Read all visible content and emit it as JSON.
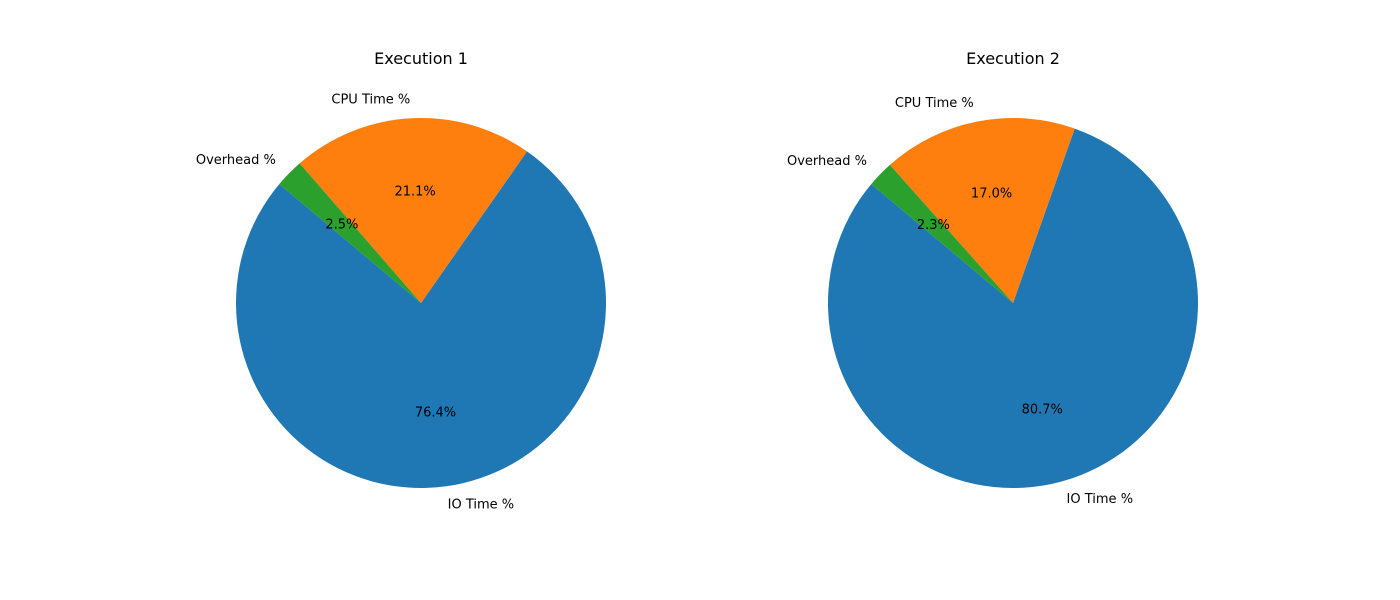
{
  "chart_data": [
    {
      "type": "pie",
      "title": "Execution 1",
      "start_angle_deg": 140,
      "direction": "counterclockwise",
      "slices": [
        {
          "label": "IO Time %",
          "value": 76.4,
          "display": "76.4%",
          "color": "#1f77b4"
        },
        {
          "label": "CPU Time %",
          "value": 21.1,
          "display": "21.1%",
          "color": "#ff7f0e"
        },
        {
          "label": "Overhead %",
          "value": 2.5,
          "display": "2.5%",
          "color": "#2ca02c"
        }
      ]
    },
    {
      "type": "pie",
      "title": "Execution 2",
      "start_angle_deg": 140,
      "direction": "counterclockwise",
      "slices": [
        {
          "label": "IO Time %",
          "value": 80.7,
          "display": "80.7%",
          "color": "#1f77b4"
        },
        {
          "label": "CPU Time %",
          "value": 17.0,
          "display": "17.0%",
          "color": "#ff7f0e"
        },
        {
          "label": "Overhead %",
          "value": 2.3,
          "display": "2.3%",
          "color": "#2ca02c"
        }
      ]
    }
  ]
}
